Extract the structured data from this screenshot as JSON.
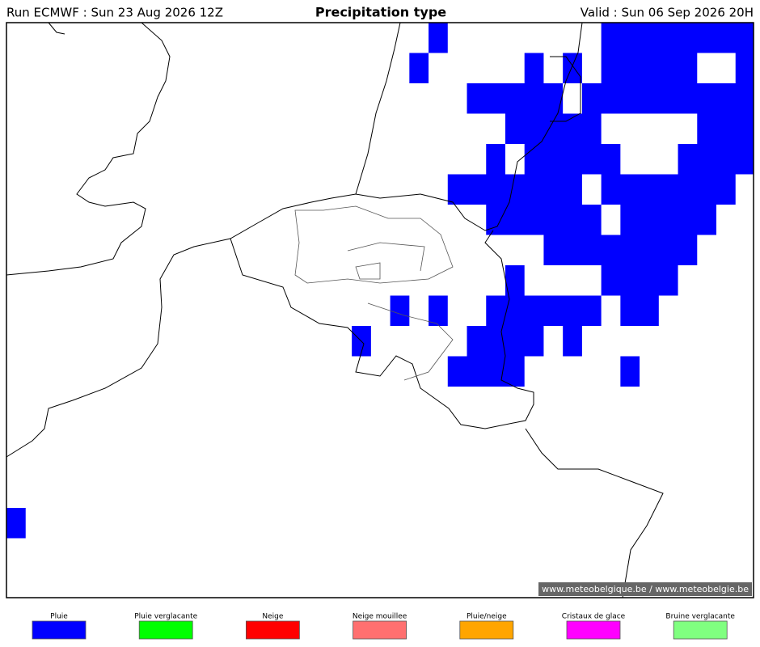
{
  "header": {
    "run": "Run ECMWF : Sun 23 Aug 2026 12Z",
    "title": "Precipitation type",
    "valid": "Valid : Sun 06 Sep 2026 20H"
  },
  "credit": "© www.meteobelgique.be / www.meteobelgie.be",
  "legend": [
    {
      "label": "Pluie",
      "color": "#0000ff"
    },
    {
      "label": "Pluie verglacante",
      "color": "#00ff00"
    },
    {
      "label": "Neige",
      "color": "#ff0000"
    },
    {
      "label": "Neige mouillee",
      "color": "#ff7070"
    },
    {
      "label": "Pluie/neige",
      "color": "#ffa500"
    },
    {
      "label": "Cristaux de glace",
      "color": "#ff00ff"
    },
    {
      "label": "Bruine verglacante",
      "color": "#80ff80"
    }
  ]
}
